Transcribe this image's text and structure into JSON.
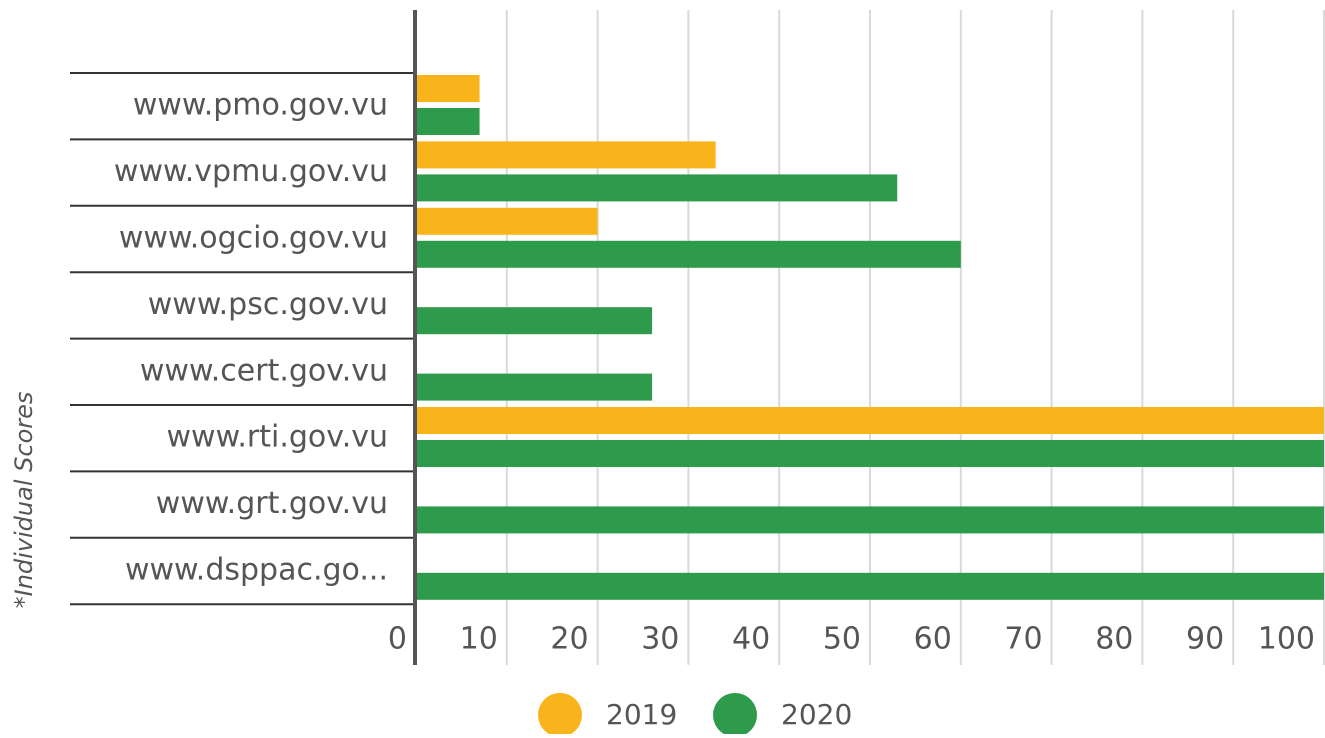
{
  "chart_data": {
    "type": "bar",
    "orientation": "horizontal",
    "axis_label": "*Individual Scores",
    "categories": [
      "www.pmo.gov.vu",
      "www.vpmu.gov.vu",
      "www.ogcio.gov.vu",
      "www.psc.gov.vu",
      "www.cert.gov.vu",
      "www.rti.gov.vu",
      "www.grt.gov.vu",
      "www.dsppac.go..."
    ],
    "series": [
      {
        "name": "2019",
        "color": "#f9b31b",
        "values": [
          7,
          33,
          20,
          null,
          null,
          100,
          null,
          null
        ]
      },
      {
        "name": "2020",
        "color": "#2e9a4b",
        "values": [
          7,
          53,
          60,
          26,
          26,
          100,
          100,
          100
        ]
      }
    ],
    "xlim": [
      0,
      100
    ],
    "xticks": [
      0,
      10,
      20,
      30,
      40,
      50,
      60,
      70,
      80,
      90,
      100
    ],
    "grid": true
  }
}
